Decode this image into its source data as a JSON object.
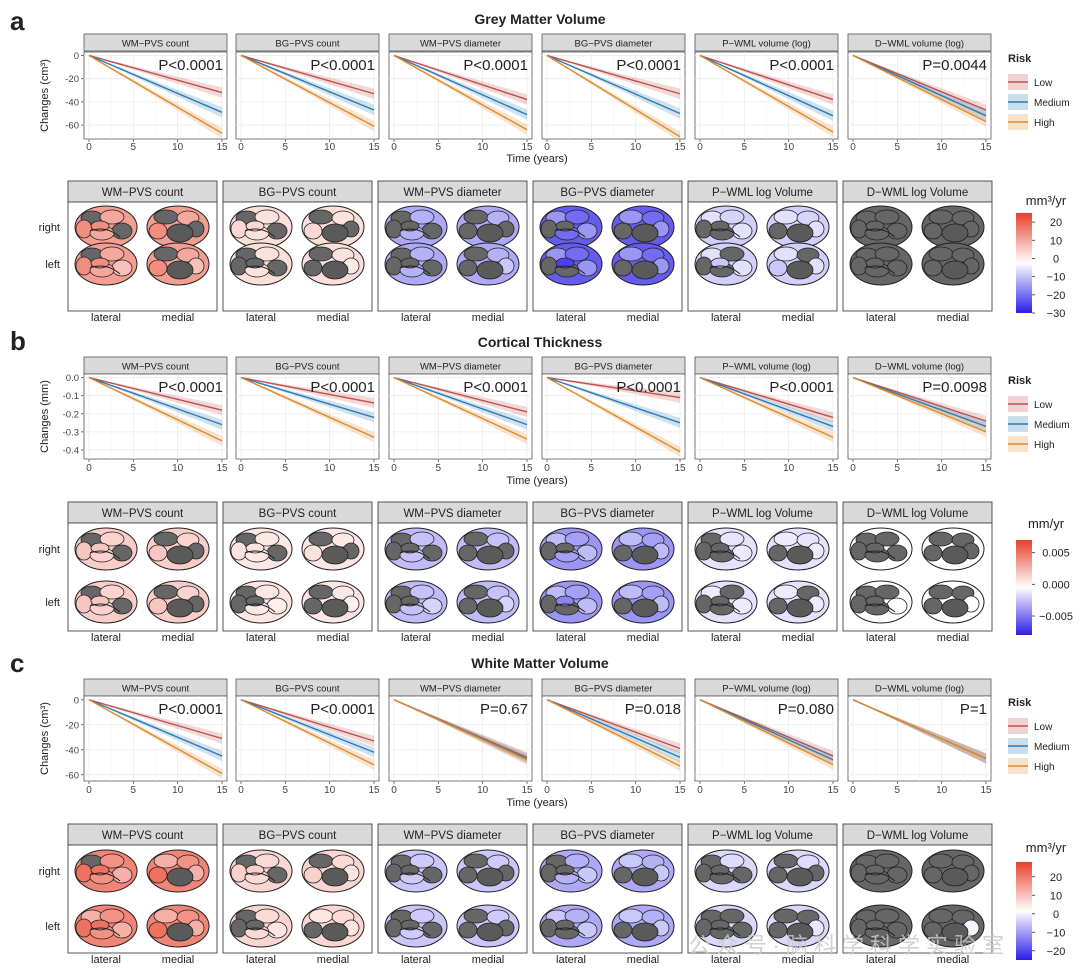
{
  "figure": {
    "watermark": "公众号·脑科学科学实验室",
    "lowercase_labels": [
      "a",
      "b",
      "c"
    ]
  },
  "panels": [
    {
      "id": "a",
      "letter": "a",
      "title": "Grey Matter Volume",
      "ylabel": "Changes (cm³)",
      "xlabel": "Time (years)",
      "xticks": [
        "0",
        "5",
        "10",
        "15"
      ],
      "yticks": [
        "0",
        "-20",
        "-40",
        "-60"
      ],
      "ylim": [
        -72,
        3
      ],
      "tick_values": [
        0,
        -20,
        -40,
        -60
      ],
      "legend_title": "Risk",
      "legend_items": [
        "Low",
        "Medium",
        "High"
      ],
      "colorbar": {
        "label": "mm³/yr",
        "ticks": [
          "20",
          "10",
          "0",
          "−10",
          "−20",
          "−30"
        ],
        "range": [
          -30,
          25
        ]
      },
      "brain_headers": [
        "WM−PVS count",
        "BG−PVS count",
        "WM−PVS diameter",
        "BG−PVS diameter",
        "P−WML log Volume",
        "D−WML log Volume"
      ],
      "row_labels": [
        "right",
        "left"
      ],
      "view_labels": [
        "lateral",
        "medial"
      ]
    },
    {
      "id": "b",
      "letter": "b",
      "title": "Cortical Thickness",
      "ylabel": "Changes (mm)",
      "xlabel": "Time (years)",
      "xticks": [
        "0",
        "5",
        "10",
        "15"
      ],
      "yticks": [
        "0.0",
        "-0.1",
        "-0.2",
        "-0.3",
        "-0.4"
      ],
      "ylim": [
        -0.45,
        0.02
      ],
      "tick_values": [
        0,
        -0.1,
        -0.2,
        -0.3,
        -0.4
      ],
      "legend_title": "Risk",
      "legend_items": [
        "Low",
        "Medium",
        "High"
      ],
      "colorbar": {
        "label": "mm/yr",
        "ticks": [
          "0.005",
          "0.000",
          "−0.005"
        ],
        "range": [
          -0.008,
          0.007
        ]
      },
      "brain_headers": [
        "WM−PVS count",
        "BG−PVS count",
        "WM−PVS diameter",
        "BG−PVS diameter",
        "P−WML log Volume",
        "D−WML log Volume"
      ],
      "row_labels": [
        "right",
        "left"
      ],
      "view_labels": [
        "lateral",
        "medial"
      ]
    },
    {
      "id": "c",
      "letter": "c",
      "title": "White Matter Volume",
      "ylabel": "Changes (cm³)",
      "xlabel": "Time (years)",
      "xticks": [
        "0",
        "5",
        "10",
        "15"
      ],
      "yticks": [
        "0",
        "-20",
        "-40",
        "-60"
      ],
      "ylim": [
        -65,
        3
      ],
      "tick_values": [
        0,
        -20,
        -40,
        -60
      ],
      "legend_title": "Risk",
      "legend_items": [
        "Low",
        "Medium",
        "High"
      ],
      "colorbar": {
        "label": "mm³/yr",
        "ticks": [
          "20",
          "10",
          "0",
          "−10",
          "−20"
        ],
        "range": [
          -25,
          28
        ]
      },
      "brain_headers": [
        "WM−PVS count",
        "BG−PVS count",
        "WM−PVS diameter",
        "BG−PVS diameter",
        "P−WML log Volume",
        "D−WML log Volume"
      ],
      "row_labels": [
        "right",
        "left"
      ],
      "view_labels": [
        "lateral",
        "medial"
      ]
    }
  ],
  "colors": {
    "low": "#c0504d",
    "medium": "#2c7bb6",
    "high": "#e08a2c",
    "strip": "#d9d9d9",
    "brain_grey": "#666666",
    "pos": "#e8402a",
    "neg": "#2a1ee8"
  },
  "chart_data": [
    {
      "type": "line",
      "panel": "a",
      "title": "Grey Matter Volume",
      "xlabel": "Time (years)",
      "ylabel": "Changes (cm³)",
      "x": [
        0,
        15
      ],
      "xlim": [
        0,
        15
      ],
      "ylim": [
        -72,
        3
      ],
      "facets": [
        {
          "strip": "WM−PVS count",
          "p": "P<0.0001",
          "series": [
            {
              "name": "Low",
              "values": [
                0,
                -32
              ]
            },
            {
              "name": "Medium",
              "values": [
                0,
                -49
              ]
            },
            {
              "name": "High",
              "values": [
                0,
                -67
              ]
            }
          ]
        },
        {
          "strip": "BG−PVS count",
          "p": "P<0.0001",
          "series": [
            {
              "name": "Low",
              "values": [
                0,
                -33
              ]
            },
            {
              "name": "Medium",
              "values": [
                0,
                -47
              ]
            },
            {
              "name": "High",
              "values": [
                0,
                -61
              ]
            }
          ]
        },
        {
          "strip": "WM−PVS diameter",
          "p": "P<0.0001",
          "series": [
            {
              "name": "Low",
              "values": [
                0,
                -38
              ]
            },
            {
              "name": "Medium",
              "values": [
                0,
                -51
              ]
            },
            {
              "name": "High",
              "values": [
                0,
                -64
              ]
            }
          ]
        },
        {
          "strip": "BG−PVS diameter",
          "p": "P<0.0001",
          "series": [
            {
              "name": "Low",
              "values": [
                0,
                -33
              ]
            },
            {
              "name": "Medium",
              "values": [
                0,
                -50
              ]
            },
            {
              "name": "High",
              "values": [
                0,
                -70
              ]
            }
          ]
        },
        {
          "strip": "P−WML volume (log)",
          "p": "P<0.0001",
          "series": [
            {
              "name": "Low",
              "values": [
                0,
                -38
              ]
            },
            {
              "name": "Medium",
              "values": [
                0,
                -52
              ]
            },
            {
              "name": "High",
              "values": [
                0,
                -66
              ]
            }
          ]
        },
        {
          "strip": "D−WML volume (log)",
          "p": "P=0.0044",
          "series": [
            {
              "name": "Low",
              "values": [
                0,
                -47
              ]
            },
            {
              "name": "Medium",
              "values": [
                0,
                -52
              ]
            },
            {
              "name": "High",
              "values": [
                0,
                -57
              ]
            }
          ]
        }
      ]
    },
    {
      "type": "line",
      "panel": "b",
      "title": "Cortical Thickness",
      "xlabel": "Time (years)",
      "ylabel": "Changes (mm)",
      "x": [
        0,
        15
      ],
      "xlim": [
        0,
        15
      ],
      "ylim": [
        -0.45,
        0.02
      ],
      "facets": [
        {
          "strip": "WM−PVS count",
          "p": "P<0.0001",
          "series": [
            {
              "name": "Low",
              "values": [
                0,
                -0.18
              ]
            },
            {
              "name": "Medium",
              "values": [
                0,
                -0.26
              ]
            },
            {
              "name": "High",
              "values": [
                0,
                -0.35
              ]
            }
          ]
        },
        {
          "strip": "BG−PVS count",
          "p": "P<0.0001",
          "series": [
            {
              "name": "Low",
              "values": [
                0,
                -0.14
              ]
            },
            {
              "name": "Medium",
              "values": [
                0,
                -0.22
              ]
            },
            {
              "name": "High",
              "values": [
                0,
                -0.33
              ]
            }
          ]
        },
        {
          "strip": "WM−PVS diameter",
          "p": "P<0.0001",
          "series": [
            {
              "name": "Low",
              "values": [
                0,
                -0.19
              ]
            },
            {
              "name": "Medium",
              "values": [
                0,
                -0.26
              ]
            },
            {
              "name": "High",
              "values": [
                0,
                -0.34
              ]
            }
          ]
        },
        {
          "strip": "BG−PVS diameter",
          "p": "P<0.0001",
          "series": [
            {
              "name": "Low",
              "values": [
                0,
                -0.11
              ]
            },
            {
              "name": "Medium",
              "values": [
                0,
                -0.25
              ]
            },
            {
              "name": "High",
              "values": [
                0,
                -0.41
              ]
            }
          ]
        },
        {
          "strip": "P−WML volume (log)",
          "p": "P<0.0001",
          "series": [
            {
              "name": "Low",
              "values": [
                0,
                -0.22
              ]
            },
            {
              "name": "Medium",
              "values": [
                0,
                -0.27
              ]
            },
            {
              "name": "High",
              "values": [
                0,
                -0.33
              ]
            }
          ]
        },
        {
          "strip": "D−WML volume (log)",
          "p": "P=0.0098",
          "series": [
            {
              "name": "Low",
              "values": [
                0,
                -0.24
              ]
            },
            {
              "name": "Medium",
              "values": [
                0,
                -0.27
              ]
            },
            {
              "name": "High",
              "values": [
                0,
                -0.3
              ]
            }
          ]
        }
      ]
    },
    {
      "type": "line",
      "panel": "c",
      "title": "White Matter Volume",
      "xlabel": "Time (years)",
      "ylabel": "Changes (cm³)",
      "x": [
        0,
        15
      ],
      "xlim": [
        0,
        15
      ],
      "ylim": [
        -65,
        3
      ],
      "facets": [
        {
          "strip": "WM−PVS count",
          "p": "P<0.0001",
          "series": [
            {
              "name": "Low",
              "values": [
                0,
                -31
              ]
            },
            {
              "name": "Medium",
              "values": [
                0,
                -45
              ]
            },
            {
              "name": "High",
              "values": [
                0,
                -59
              ]
            }
          ]
        },
        {
          "strip": "BG−PVS count",
          "p": "P<0.0001",
          "series": [
            {
              "name": "Low",
              "values": [
                0,
                -33
              ]
            },
            {
              "name": "Medium",
              "values": [
                0,
                -42
              ]
            },
            {
              "name": "High",
              "values": [
                0,
                -52
              ]
            }
          ]
        },
        {
          "strip": "WM−PVS diameter",
          "p": "P=0.67",
          "series": [
            {
              "name": "Low",
              "values": [
                0,
                -46
              ]
            },
            {
              "name": "Medium",
              "values": [
                0,
                -47
              ]
            },
            {
              "name": "High",
              "values": [
                0,
                -48
              ]
            }
          ]
        },
        {
          "strip": "BG−PVS diameter",
          "p": "P=0.018",
          "series": [
            {
              "name": "Low",
              "values": [
                0,
                -39
              ]
            },
            {
              "name": "Medium",
              "values": [
                0,
                -46
              ]
            },
            {
              "name": "High",
              "values": [
                0,
                -53
              ]
            }
          ]
        },
        {
          "strip": "P−WML volume (log)",
          "p": "P=0.080",
          "series": [
            {
              "name": "Low",
              "values": [
                0,
                -45
              ]
            },
            {
              "name": "Medium",
              "values": [
                0,
                -48
              ]
            },
            {
              "name": "High",
              "values": [
                0,
                -52
              ]
            }
          ]
        },
        {
          "strip": "D−WML volume (log)",
          "p": "P=1",
          "series": [
            {
              "name": "Low",
              "values": [
                0,
                -47
              ]
            },
            {
              "name": "Medium",
              "values": [
                0,
                -47
              ]
            },
            {
              "name": "High",
              "values": [
                0,
                -47
              ]
            }
          ]
        }
      ]
    }
  ],
  "brain_maps": [
    {
      "panel": "a",
      "intensity": [
        0.6,
        0.2,
        -0.45,
        -0.85,
        -0.25,
        0
      ],
      "gray_share": [
        0.25,
        0.45,
        0.55,
        0.35,
        0.45,
        1.0
      ]
    },
    {
      "panel": "b",
      "intensity": [
        0.3,
        0.15,
        -0.35,
        -0.55,
        -0.15,
        0
      ],
      "gray_share": [
        0.35,
        0.35,
        0.5,
        0.35,
        0.55,
        0.9
      ]
    },
    {
      "panel": "c",
      "intensity": [
        0.75,
        0.25,
        -0.3,
        -0.45,
        -0.2,
        -0.1
      ],
      "gray_share": [
        0.05,
        0.3,
        0.6,
        0.45,
        0.8,
        0.95
      ]
    }
  ]
}
